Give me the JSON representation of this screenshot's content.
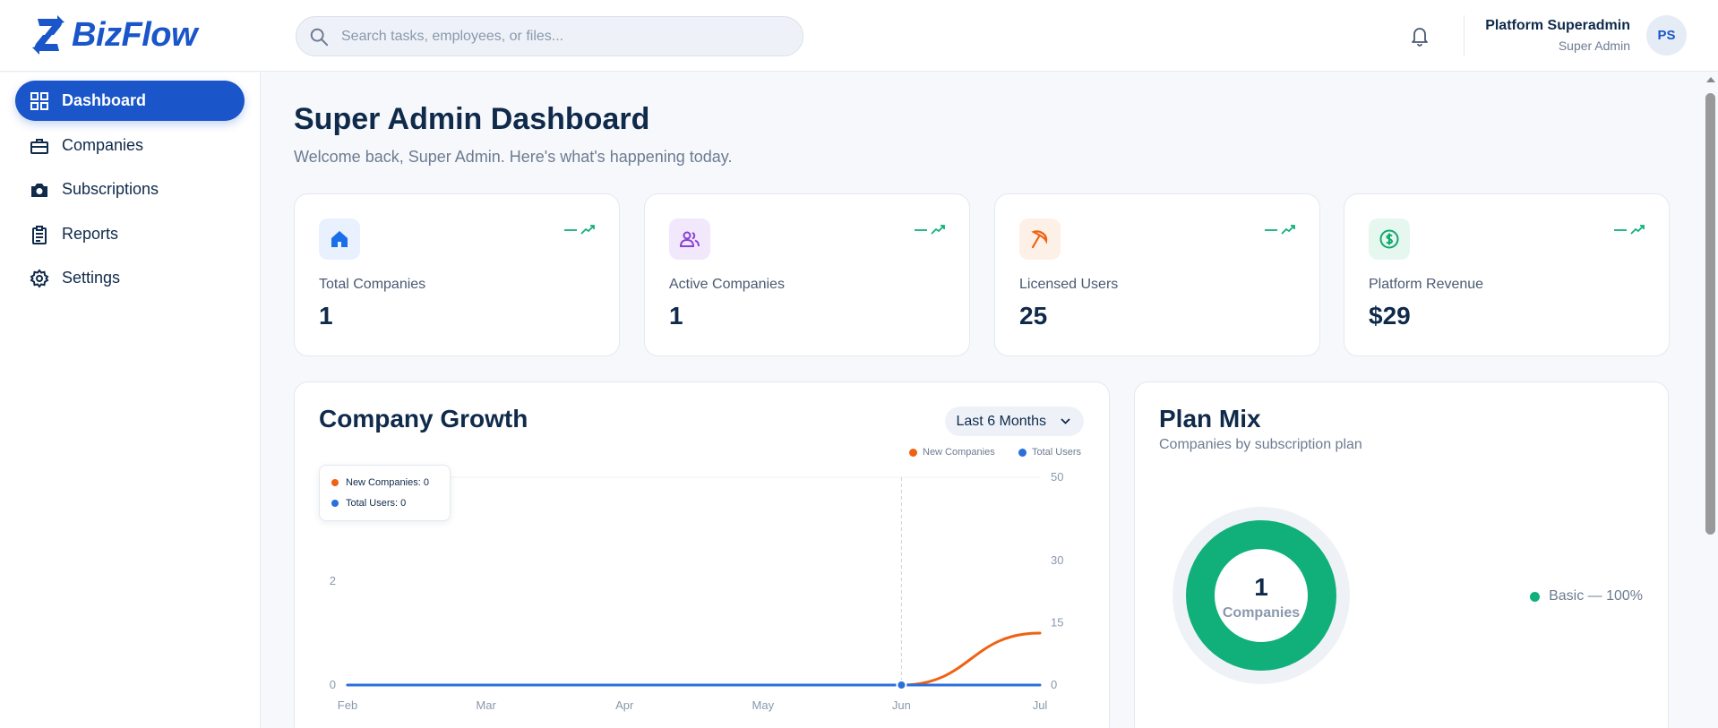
{
  "app": {
    "name": "BizFlow"
  },
  "header": {
    "search_placeholder": "Search tasks, employees, or files...",
    "user_name": "Platform Superadmin",
    "user_role": "Super Admin",
    "avatar_initials": "PS"
  },
  "sidebar": {
    "items": [
      {
        "label": "Dashboard",
        "icon": "grid-icon",
        "active": true
      },
      {
        "label": "Companies",
        "icon": "briefcase-icon"
      },
      {
        "label": "Subscriptions",
        "icon": "camera-icon"
      },
      {
        "label": "Reports",
        "icon": "clipboard-icon"
      },
      {
        "label": "Settings",
        "icon": "gear-icon"
      }
    ]
  },
  "page": {
    "title": "Super Admin Dashboard",
    "subtitle": "Welcome back, Super Admin. Here's what's happening today."
  },
  "stats": [
    {
      "label": "Total Companies",
      "value": "1",
      "icon": "house-icon",
      "color": "#1a6ee8",
      "bg": "#e8f1fd"
    },
    {
      "label": "Active Companies",
      "value": "1",
      "icon": "users-icon",
      "color": "#8a3fd9",
      "bg": "#f1e8fc"
    },
    {
      "label": "Licensed Users",
      "value": "25",
      "icon": "umbrella-icon",
      "color": "#ef6213",
      "bg": "#fdf0e6"
    },
    {
      "label": "Platform Revenue",
      "value": "$29",
      "icon": "dollar-circle-icon",
      "color": "#11a86c",
      "bg": "#e6f7ef"
    }
  ],
  "trend_color": "#11b07a",
  "growth": {
    "title": "Company Growth",
    "range_label": "Last 6 Months",
    "legend": [
      {
        "name": "New Companies",
        "color": "#ef6213"
      },
      {
        "name": "Total Users",
        "color": "#2a6fdb"
      }
    ],
    "tooltip": [
      "New Companies: 0",
      "Total Users: 0"
    ]
  },
  "plan_mix": {
    "title": "Plan Mix",
    "subtitle": "Companies by subscription plan",
    "center_value": "1",
    "center_label": "Companies",
    "legend": [
      {
        "label": "Basic — 100%",
        "color": "#11b07a"
      }
    ]
  },
  "chart_data": [
    {
      "type": "line",
      "x": [
        "Feb",
        "Mar",
        "Apr",
        "May",
        "Jun",
        "Jul"
      ],
      "series": [
        {
          "name": "New Companies",
          "axis": "left",
          "values": [
            0,
            0,
            0,
            0,
            0,
            1
          ],
          "color": "#ef6213"
        },
        {
          "name": "Total Users",
          "axis": "right",
          "values": [
            0,
            0,
            0,
            0,
            0,
            0
          ],
          "color": "#2a6fdb"
        }
      ],
      "y_left_ticks": [
        0,
        2
      ],
      "y_right_ticks": [
        0,
        15,
        30,
        50
      ],
      "y_left_range": [
        0,
        4
      ],
      "y_right_range": [
        0,
        50
      ],
      "grid": "top line only",
      "legend_position": "top-right",
      "hover_category": "Jun"
    },
    {
      "type": "pie",
      "variant": "donut",
      "categories": [
        "Basic"
      ],
      "values": [
        100
      ],
      "colors": [
        "#11b07a"
      ]
    }
  ]
}
